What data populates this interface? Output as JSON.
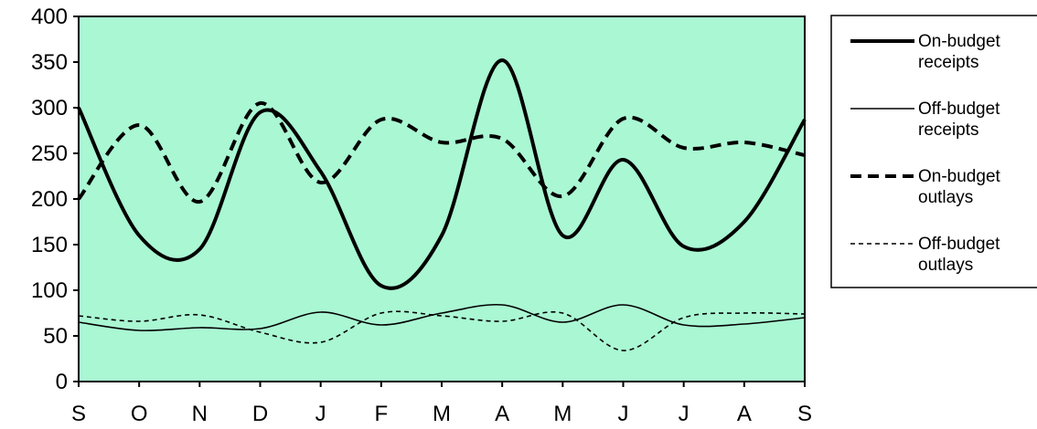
{
  "chart_data": {
    "type": "line",
    "title": "",
    "xlabel": "",
    "ylabel": "",
    "categories": [
      "S",
      "O",
      "N",
      "D",
      "J",
      "F",
      "M",
      "A",
      "M",
      "J",
      "J",
      "A",
      "S"
    ],
    "ylim": [
      0,
      400
    ],
    "yticks": [
      0,
      50,
      100,
      150,
      200,
      250,
      300,
      350,
      400
    ],
    "plot_background": "#aaf7d3",
    "grid": false,
    "legend_position": "right",
    "series": [
      {
        "name": "On-budget receipts",
        "legend_lines": [
          "On-budget",
          "receipts"
        ],
        "style": "thick-solid",
        "values": [
          300,
          160,
          145,
          295,
          230,
          105,
          160,
          352,
          160,
          243,
          148,
          175,
          287
        ]
      },
      {
        "name": "Off-budget receipts",
        "legend_lines": [
          "Off-budget",
          "receipts"
        ],
        "style": "thin-solid",
        "values": [
          65,
          56,
          59,
          58,
          76,
          62,
          75,
          84,
          65,
          84,
          62,
          63,
          70
        ]
      },
      {
        "name": "On-budget outlays",
        "legend_lines": [
          "On-budget",
          "outlays"
        ],
        "style": "thick-dashed",
        "values": [
          200,
          281,
          197,
          305,
          218,
          287,
          262,
          266,
          203,
          288,
          256,
          262,
          248
        ]
      },
      {
        "name": "Off-budget outlays",
        "legend_lines": [
          "Off-budget",
          "outlays"
        ],
        "style": "thin-dashed",
        "values": [
          72,
          66,
          73,
          54,
          43,
          75,
          72,
          66,
          75,
          34,
          70,
          75,
          74
        ]
      }
    ]
  }
}
